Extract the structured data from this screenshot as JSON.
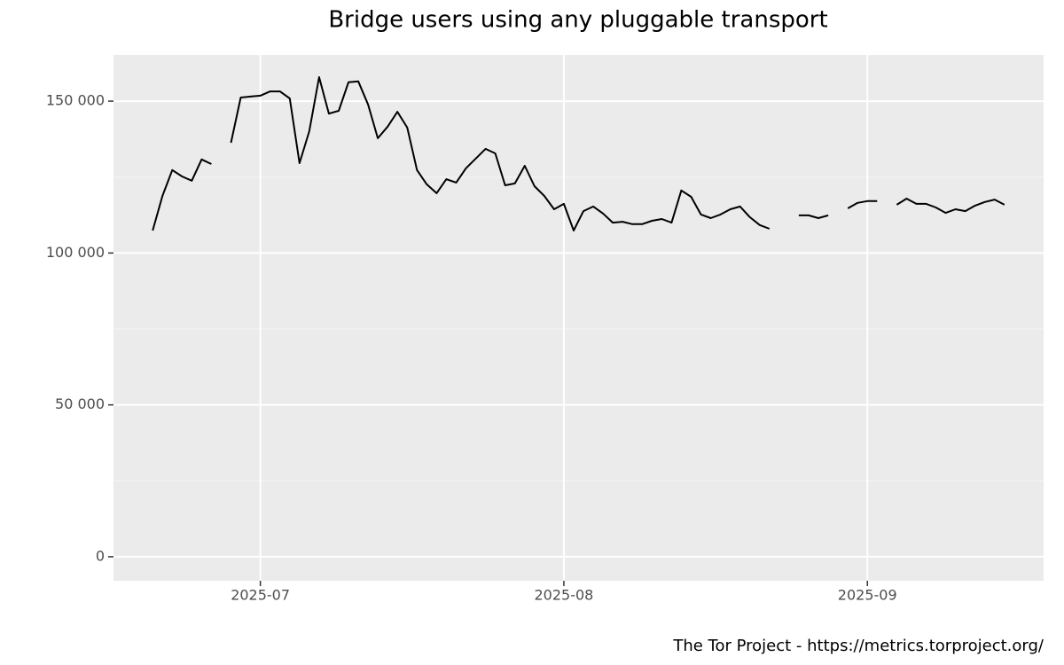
{
  "chart_data": {
    "type": "line",
    "title": "Bridge users using any pluggable transport",
    "caption": "The Tor Project - https://metrics.torproject.org/",
    "x": [
      "2025-06-20",
      "2025-06-21",
      "2025-06-22",
      "2025-06-23",
      "2025-06-24",
      "2025-06-25",
      "2025-06-26",
      "2025-06-27",
      "2025-06-28",
      "2025-06-29",
      "2025-06-30",
      "2025-07-01",
      "2025-07-02",
      "2025-07-03",
      "2025-07-04",
      "2025-07-05",
      "2025-07-06",
      "2025-07-07",
      "2025-07-08",
      "2025-07-09",
      "2025-07-10",
      "2025-07-11",
      "2025-07-12",
      "2025-07-13",
      "2025-07-14",
      "2025-07-15",
      "2025-07-16",
      "2025-07-17",
      "2025-07-18",
      "2025-07-19",
      "2025-07-20",
      "2025-07-21",
      "2025-07-22",
      "2025-07-23",
      "2025-07-24",
      "2025-07-25",
      "2025-07-26",
      "2025-07-27",
      "2025-07-28",
      "2025-07-29",
      "2025-07-30",
      "2025-07-31",
      "2025-08-01",
      "2025-08-02",
      "2025-08-03",
      "2025-08-04",
      "2025-08-05",
      "2025-08-06",
      "2025-08-07",
      "2025-08-08",
      "2025-08-09",
      "2025-08-10",
      "2025-08-11",
      "2025-08-12",
      "2025-08-13",
      "2025-08-14",
      "2025-08-15",
      "2025-08-16",
      "2025-08-17",
      "2025-08-18",
      "2025-08-19",
      "2025-08-20",
      "2025-08-21",
      "2025-08-22",
      "2025-08-23",
      "2025-08-24",
      "2025-08-25",
      "2025-08-26",
      "2025-08-27",
      "2025-08-28",
      "2025-08-29",
      "2025-08-30",
      "2025-08-31",
      "2025-09-01",
      "2025-09-02",
      "2025-09-03",
      "2025-09-04",
      "2025-09-05",
      "2025-09-06",
      "2025-09-07",
      "2025-09-08",
      "2025-09-09",
      "2025-09-10",
      "2025-09-11",
      "2025-09-12",
      "2025-09-13",
      "2025-09-14",
      "2025-09-15"
    ],
    "series": [
      {
        "color": "#000000",
        "values": [
          107400,
          118800,
          127300,
          125200,
          123800,
          130800,
          129300,
          null,
          136300,
          151200,
          151500,
          151800,
          153200,
          153200,
          150900,
          129600,
          140100,
          157900,
          145900,
          146800,
          156200,
          156500,
          148900,
          137800,
          141600,
          146500,
          141300,
          127300,
          122600,
          119700,
          124300,
          123200,
          127900,
          131100,
          134300,
          132800,
          122300,
          122900,
          128700,
          122000,
          118800,
          114400,
          116200,
          107400,
          113800,
          115300,
          113000,
          110000,
          110300,
          109500,
          109500,
          110600,
          111200,
          110000,
          120600,
          118500,
          112700,
          111500,
          112700,
          114400,
          115300,
          111800,
          109200,
          108000,
          null,
          null,
          112400,
          112400,
          111500,
          112400,
          null,
          114700,
          116500,
          117100,
          117100,
          null,
          115900,
          117900,
          116200,
          116200,
          115000,
          113200,
          114400,
          113800,
          115600,
          116800,
          117600,
          115900
        ]
      }
    ],
    "xlim": [
      "2025-06-16",
      "2025-09-19"
    ],
    "xticks": [
      {
        "value": "2025-07-01",
        "label": "2025-07"
      },
      {
        "value": "2025-08-01",
        "label": "2025-08"
      },
      {
        "value": "2025-09-01",
        "label": "2025-09"
      }
    ],
    "ylim": [
      -7900,
      165200
    ],
    "yticks": [
      0,
      {
        "value": 50000,
        "label": "50 000"
      },
      {
        "value": 100000,
        "label": "100 000"
      },
      {
        "value": 150000,
        "label": "150 000"
      }
    ],
    "grid": true
  }
}
